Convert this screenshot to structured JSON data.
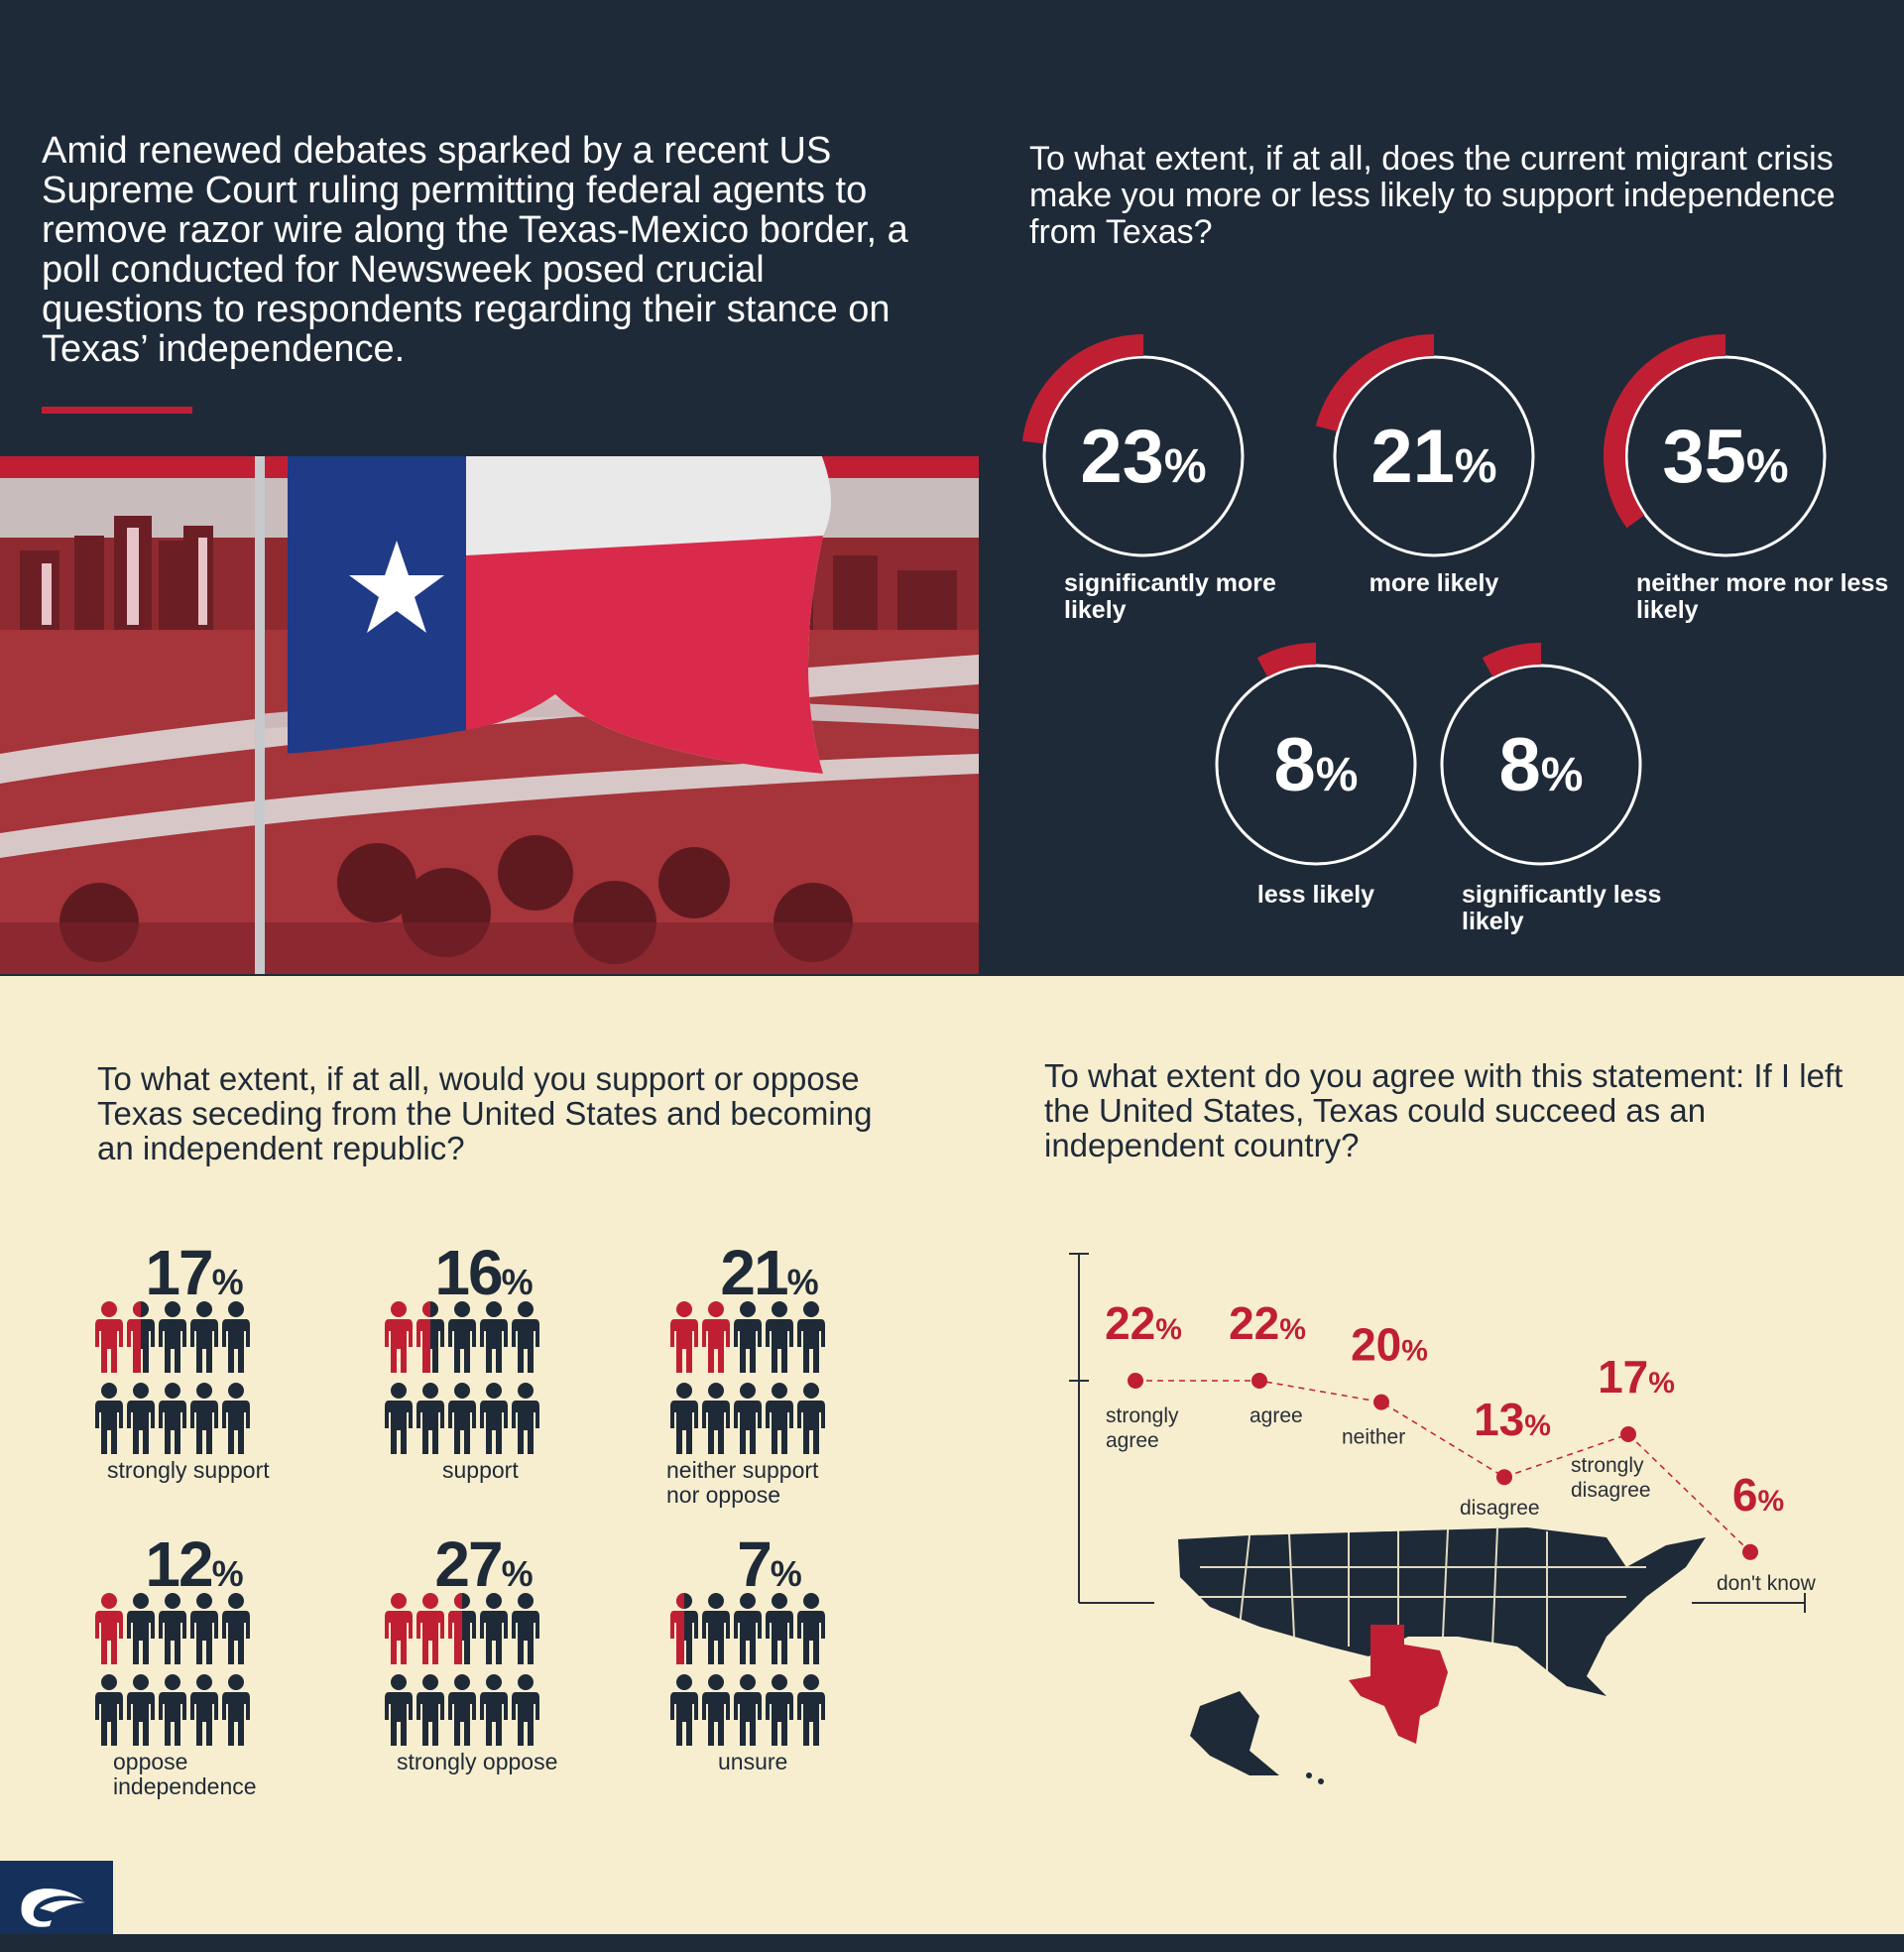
{
  "intro_text": "Amid renewed debates sparked by a recent US Supreme Court ruling permitting federal agents to remove razor wire along the Texas-Mexico border, a poll conducted for Newsweek posed crucial questions to respondents regarding their stance on Texas’ independence.",
  "colors": {
    "navy": "#1f2a38",
    "red": "#c01f33",
    "cream": "#f7eecf",
    "white": "#ffffff"
  },
  "chart_data": [
    {
      "type": "pie",
      "title": "To what extent, if at all, does the current migrant crisis make you more or less likely to support independence from Texas?",
      "unit": "%",
      "categories": [
        "significantly more likely",
        "more likely",
        "neither more nor less likely",
        "less likely",
        "significantly less likely"
      ],
      "values": [
        23,
        21,
        35,
        8,
        8
      ]
    },
    {
      "type": "bar",
      "title": "To what extent, if at all, would you support or oppose Texas seceding from the United States and becoming an independent republic?",
      "unit": "%",
      "categories": [
        "strongly support",
        "support",
        "neither support nor oppose",
        "oppose independence",
        "strongly oppose",
        "unsure"
      ],
      "values": [
        17,
        16,
        21,
        12,
        27,
        7
      ]
    },
    {
      "type": "line",
      "title": "To what extent do you agree with this statement: If I left the United States, Texas could succeed as an independent country?",
      "unit": "%",
      "categories": [
        "strongly agree",
        "agree",
        "neither",
        "disagree",
        "strongly disagree",
        "don't know"
      ],
      "values": [
        22,
        22,
        20,
        13,
        17,
        6
      ]
    }
  ]
}
